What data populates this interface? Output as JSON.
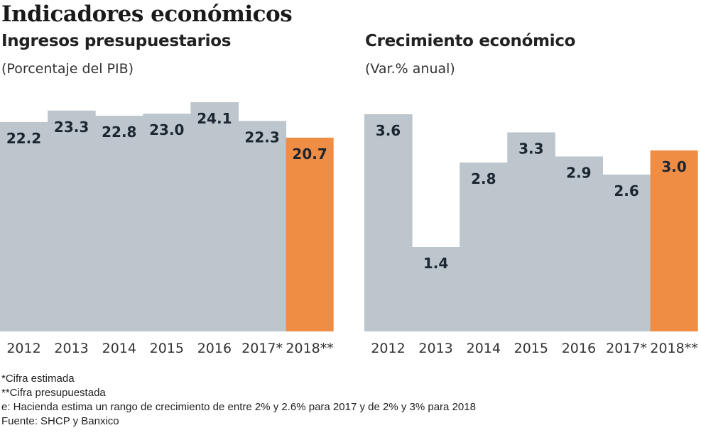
{
  "title": "Indicadores económicos",
  "colors": {
    "bar": "#bcc6cc",
    "highlight": "#f08d45",
    "label": "#1c2530",
    "tick": "#333333"
  },
  "chart_data": [
    {
      "type": "bar",
      "title": "Ingresos presupuestarios",
      "subtitle": "(Porcentaje del PIB)",
      "xlabel": "",
      "ylabel": "",
      "categories": [
        "2012",
        "2013",
        "2014",
        "2015",
        "2016",
        "2017*",
        "2018**"
      ],
      "values": [
        22.2,
        23.3,
        22.8,
        23.0,
        24.1,
        22.3,
        20.7
      ],
      "value_labels": [
        "22.2",
        "23.3",
        "22.8",
        "23.0",
        "24.1",
        "22.3",
        "20.7"
      ],
      "highlight_index": 6,
      "ylim": [
        0,
        26
      ],
      "grid": false,
      "legend": "none"
    },
    {
      "type": "bar",
      "title": "Crecimiento económico",
      "subtitle": "(Var.% anual)",
      "xlabel": "",
      "ylabel": "",
      "categories": [
        "2012",
        "2013",
        "2014",
        "2015",
        "2016",
        "2017*",
        "2018**"
      ],
      "values": [
        3.6,
        1.4,
        2.8,
        3.3,
        2.9,
        2.6,
        3.0
      ],
      "value_labels": [
        "3.6",
        "1.4",
        "2.8",
        "3.3",
        "2.9",
        "2.6",
        "3.0"
      ],
      "highlight_index": 6,
      "ylim": [
        0,
        3.8
      ],
      "grid": false,
      "legend": "none"
    }
  ],
  "notes": [
    "*Cifra estimada",
    "**Cifra presupuestada",
    "e: Hacienda estima un rango de crecimiento de entre 2% y 2.6% para 2017 y de 2% y 3% para 2018",
    "Fuente: SHCP y Banxico"
  ]
}
